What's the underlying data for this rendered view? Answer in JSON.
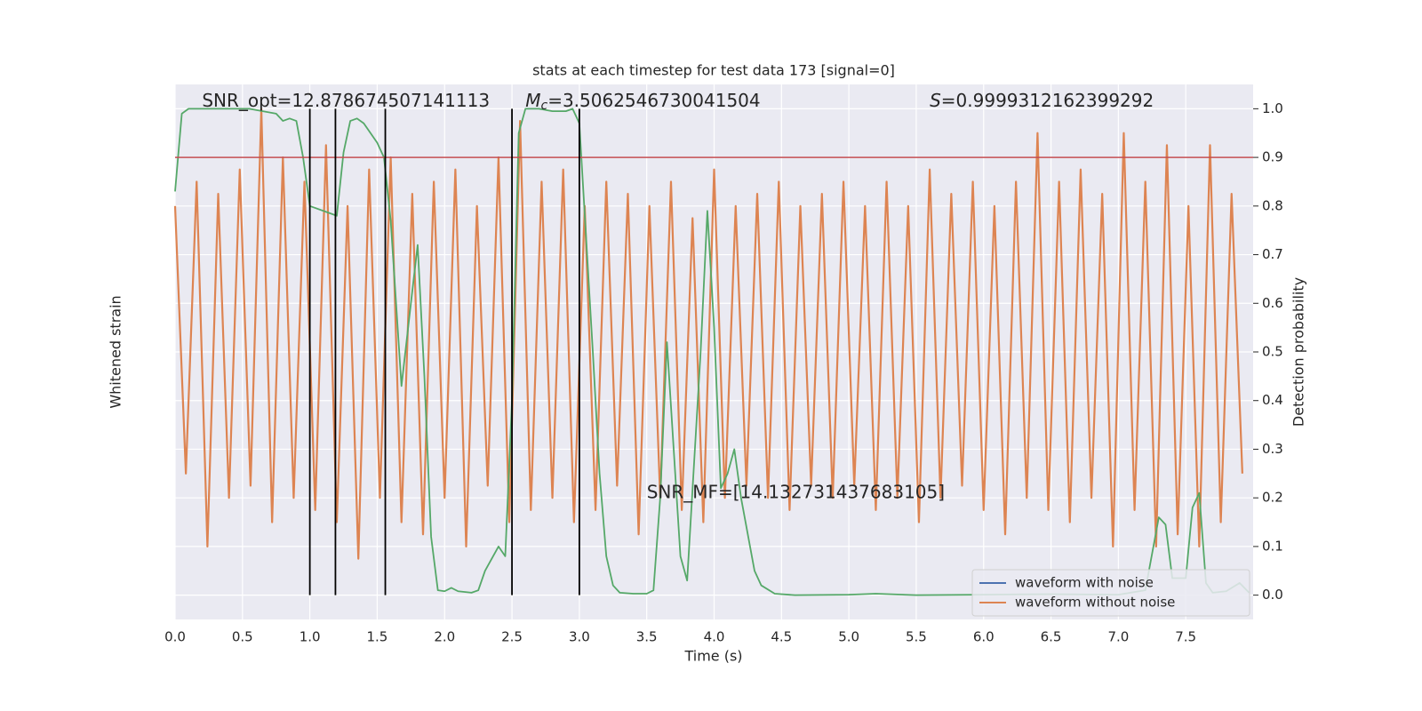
{
  "chart_data": {
    "type": "line",
    "title": "stats at each timestep for test data 173 [signal=0]",
    "xlabel": "Time (s)",
    "ylabel": "Whitened strain",
    "y2label": "Detection probability",
    "xlim": [
      0,
      8.0
    ],
    "ylim": [
      -1.1,
      1.1
    ],
    "y2lim": [
      -0.05,
      1.05
    ],
    "xticks": [
      {
        "value": 0,
        "label": "0.0"
      },
      {
        "value": 0.5,
        "label": "0.5"
      },
      {
        "value": 1,
        "label": "1.0"
      },
      {
        "value": 1.5,
        "label": "1.5"
      },
      {
        "value": 2,
        "label": "2.0"
      },
      {
        "value": 2.5,
        "label": "2.5"
      },
      {
        "value": 3,
        "label": "3.0"
      },
      {
        "value": 3.5,
        "label": "3.5"
      },
      {
        "value": 4,
        "label": "4.0"
      },
      {
        "value": 4.5,
        "label": "4.5"
      },
      {
        "value": 5,
        "label": "5.0"
      },
      {
        "value": 5.5,
        "label": "5.5"
      },
      {
        "value": 6,
        "label": "6.0"
      },
      {
        "value": 6.5,
        "label": "6.5"
      },
      {
        "value": 7,
        "label": "7.0"
      },
      {
        "value": 7.5,
        "label": "7.5"
      }
    ],
    "y2ticks": [
      {
        "value": 0,
        "label": "0.0"
      },
      {
        "value": 0.1,
        "label": "0.1"
      },
      {
        "value": 0.2,
        "label": "0.2"
      },
      {
        "value": 0.3,
        "label": "0.3"
      },
      {
        "value": 0.4,
        "label": "0.4"
      },
      {
        "value": 0.5,
        "label": "0.5"
      },
      {
        "value": 0.6,
        "label": "0.6"
      },
      {
        "value": 0.7,
        "label": "0.7"
      },
      {
        "value": 0.8,
        "label": "0.8"
      },
      {
        "value": 0.9,
        "label": "0.9"
      },
      {
        "value": 1,
        "label": "1.0"
      }
    ],
    "grid": true,
    "legend": "lower right",
    "series": [
      {
        "name": "waveform with noise",
        "color": "#4c72b0",
        "x": [],
        "values": []
      },
      {
        "name": "waveform without noise",
        "color": "#dd8452",
        "axis": "y",
        "x": [
          0,
          0.08,
          0.16,
          0.24,
          0.32,
          0.4,
          0.48,
          0.56,
          0.64,
          0.72,
          0.8,
          0.88,
          0.96,
          1.04,
          1.12,
          1.2,
          1.28,
          1.36,
          1.44,
          1.52,
          1.6,
          1.68,
          1.76,
          1.84,
          1.92,
          2.0,
          2.08,
          2.16,
          2.24,
          2.32,
          2.4,
          2.48,
          2.56,
          2.64,
          2.72,
          2.8,
          2.88,
          2.96,
          3.04,
          3.12,
          3.2,
          3.28,
          3.36,
          3.44,
          3.52,
          3.6,
          3.68,
          3.76,
          3.84,
          3.92,
          4.0,
          4.08,
          4.16,
          4.24,
          4.32,
          4.4,
          4.48,
          4.56,
          4.64,
          4.72,
          4.8,
          4.88,
          4.96,
          5.04,
          5.12,
          5.2,
          5.28,
          5.36,
          5.44,
          5.52,
          5.6,
          5.68,
          5.76,
          5.84,
          5.92,
          6.0,
          6.08,
          6.16,
          6.24,
          6.32,
          6.4,
          6.48,
          6.56,
          6.64,
          6.72,
          6.8,
          6.88,
          6.96,
          7.04,
          7.12,
          7.2,
          7.28,
          7.36,
          7.44,
          7.52,
          7.6,
          7.68,
          7.76,
          7.84,
          7.92
        ],
        "values": [
          0.6,
          -0.5,
          0.7,
          -0.8,
          0.65,
          -0.6,
          0.75,
          -0.55,
          1.0,
          -0.7,
          0.8,
          -0.6,
          0.7,
          -0.65,
          0.85,
          -0.7,
          0.6,
          -0.85,
          0.75,
          -0.6,
          0.8,
          -0.7,
          0.65,
          -0.75,
          0.7,
          -0.6,
          0.75,
          -0.8,
          0.6,
          -0.55,
          0.8,
          -0.7,
          0.95,
          -0.65,
          0.7,
          -0.6,
          0.75,
          -0.7,
          0.6,
          -0.65,
          0.7,
          -0.55,
          0.65,
          -0.75,
          0.6,
          -0.6,
          0.7,
          -0.65,
          0.55,
          -0.7,
          0.75,
          -0.6,
          0.6,
          -0.55,
          0.65,
          -0.6,
          0.7,
          -0.65,
          0.6,
          -0.55,
          0.65,
          -0.6,
          0.7,
          -0.55,
          0.6,
          -0.65,
          0.7,
          -0.6,
          0.6,
          -0.7,
          0.75,
          -0.6,
          0.65,
          -0.55,
          0.7,
          -0.65,
          0.6,
          -0.75,
          0.7,
          -0.6,
          0.9,
          -0.65,
          0.7,
          -0.7,
          0.75,
          -0.6,
          0.65,
          -0.8,
          0.9,
          -0.65,
          0.7,
          -0.8,
          0.85,
          -0.75,
          0.6,
          -0.8,
          0.85,
          -0.7,
          0.65,
          -0.5
        ]
      },
      {
        "color": "#55a868",
        "axis": "y2",
        "x": [
          0,
          0.05,
          0.1,
          0.55,
          0.75,
          0.8,
          0.85,
          0.9,
          0.95,
          1.0,
          1.15,
          1.2,
          1.25,
          1.3,
          1.35,
          1.4,
          1.5,
          1.55,
          1.6,
          1.68,
          1.75,
          1.8,
          1.85,
          1.9,
          1.95,
          2.0,
          2.05,
          2.1,
          2.2,
          2.25,
          2.3,
          2.4,
          2.45,
          2.5,
          2.55,
          2.6,
          2.7,
          2.8,
          2.9,
          2.95,
          3.0,
          3.1,
          3.15,
          3.2,
          3.25,
          3.3,
          3.4,
          3.5,
          3.55,
          3.6,
          3.65,
          3.7,
          3.75,
          3.8,
          3.9,
          3.95,
          4.0,
          4.05,
          4.1,
          4.15,
          4.2,
          4.3,
          4.35,
          4.45,
          4.6,
          5.0,
          5.2,
          5.5,
          6.0,
          6.5,
          7.0,
          7.2,
          7.3,
          7.35,
          7.4,
          7.5,
          7.55,
          7.6,
          7.65,
          7.7,
          7.8,
          7.9,
          7.97
        ],
        "values": [
          0.83,
          0.99,
          1.0,
          1.0,
          0.99,
          0.975,
          0.98,
          0.975,
          0.9,
          0.8,
          0.785,
          0.78,
          0.91,
          0.975,
          0.98,
          0.97,
          0.93,
          0.9,
          0.77,
          0.43,
          0.6,
          0.72,
          0.45,
          0.12,
          0.01,
          0.008,
          0.015,
          0.008,
          0.005,
          0.01,
          0.05,
          0.1,
          0.08,
          0.4,
          0.95,
          1.0,
          1.0,
          0.995,
          0.995,
          1.0,
          0.97,
          0.5,
          0.25,
          0.08,
          0.02,
          0.005,
          0.003,
          0.003,
          0.01,
          0.2,
          0.52,
          0.3,
          0.08,
          0.03,
          0.5,
          0.79,
          0.55,
          0.22,
          0.25,
          0.3,
          0.2,
          0.05,
          0.02,
          0.003,
          0.0,
          0.001,
          0.003,
          0.0,
          0.001,
          0.002,
          0.001,
          0.01,
          0.16,
          0.145,
          0.035,
          0.035,
          0.18,
          0.21,
          0.025,
          0.005,
          0.008,
          0.025,
          0.005
        ]
      }
    ],
    "hlines": [
      {
        "value": 0.9,
        "color": "#c44e52",
        "axis": "y2"
      }
    ],
    "vlines": {
      "x": [
        1.0,
        1.19,
        1.56,
        2.5,
        3.0
      ],
      "range": [
        0,
        1.0
      ],
      "color": "#000000",
      "axis": "y2"
    },
    "annotations": [
      {
        "x": 0.2,
        "y": 1.015,
        "text": "SNR_opt=12.878674507141113"
      },
      {
        "x": 2.6,
        "y": 1.015,
        "symbol": "M",
        "sub": "c",
        "text": "=3.5062546730041504"
      },
      {
        "x": 5.6,
        "y": 1.015,
        "symbol": "S",
        "text": "=0.9999312162399292"
      },
      {
        "x": 3.5,
        "y": 0.21,
        "text": "SNR_MF=[14.132731437683105]"
      }
    ]
  }
}
